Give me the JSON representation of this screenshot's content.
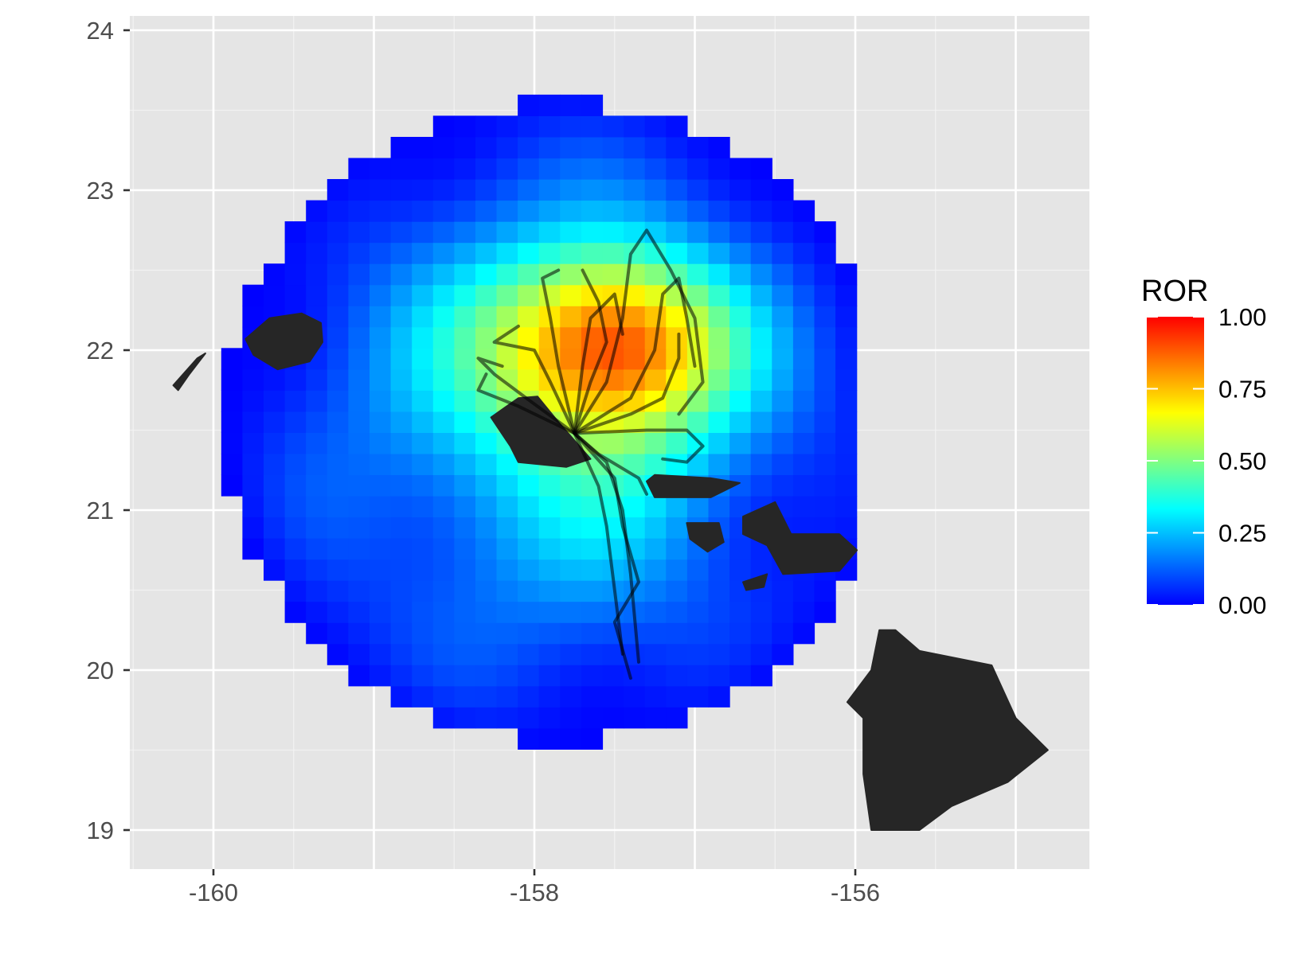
{
  "chart_data": {
    "type": "heatmap",
    "x_ticks": [
      "-160",
      "-158",
      "-156"
    ],
    "y_ticks": [
      "19",
      "20",
      "21",
      "22",
      "23",
      "24"
    ],
    "xlim": [
      -160.5,
      -154.6
    ],
    "ylim": [
      18.8,
      24.1
    ],
    "grid": true,
    "grid_centers": {
      "lon0": -158.3,
      "lat0": 21.55,
      "cell_deg": 0.132
    },
    "colorscale": {
      "name": "ROR",
      "range": [
        0,
        1
      ],
      "ticks": [
        "0.00",
        "0.25",
        "0.50",
        "0.75",
        "1.00"
      ],
      "tick_values": [
        0,
        0.25,
        0.5,
        0.75,
        1.0
      ],
      "colors": [
        "#0000ff",
        "#0080ff",
        "#00ffff",
        "#80ff80",
        "#ffff00",
        "#ff8000",
        "#ff0000"
      ]
    },
    "region_outline": {
      "center": [
        -157.85,
        21.55
      ],
      "radius_deg": 2.08,
      "description_points_note": "grid cells inside circular study area",
      "hotspot": {
        "center": [
          -157.5,
          22.05
        ],
        "peak": 0.72
      }
    },
    "islands": [
      {
        "name": "Niihau",
        "points": [
          [
            -160.25,
            21.78
          ],
          [
            -160.1,
            21.95
          ],
          [
            -160.05,
            21.98
          ],
          [
            -160.15,
            21.85
          ],
          [
            -160.22,
            21.75
          ]
        ]
      },
      {
        "name": "Kauai",
        "points": [
          [
            -159.8,
            22.07
          ],
          [
            -159.65,
            22.2
          ],
          [
            -159.45,
            22.23
          ],
          [
            -159.33,
            22.17
          ],
          [
            -159.32,
            22.05
          ],
          [
            -159.4,
            21.93
          ],
          [
            -159.6,
            21.88
          ],
          [
            -159.75,
            21.97
          ]
        ]
      },
      {
        "name": "Oahu",
        "points": [
          [
            -158.27,
            21.58
          ],
          [
            -158.1,
            21.7
          ],
          [
            -157.98,
            21.71
          ],
          [
            -157.85,
            21.55
          ],
          [
            -157.65,
            21.32
          ],
          [
            -157.8,
            21.27
          ],
          [
            -158.1,
            21.3
          ],
          [
            -158.15,
            21.4
          ]
        ]
      },
      {
        "name": "Molokai",
        "points": [
          [
            -157.3,
            21.18
          ],
          [
            -157.25,
            21.22
          ],
          [
            -156.9,
            21.2
          ],
          [
            -156.72,
            21.17
          ],
          [
            -156.9,
            21.08
          ],
          [
            -157.25,
            21.08
          ]
        ]
      },
      {
        "name": "Lanai",
        "points": [
          [
            -157.05,
            20.92
          ],
          [
            -156.85,
            20.92
          ],
          [
            -156.82,
            20.8
          ],
          [
            -156.92,
            20.74
          ],
          [
            -157.03,
            20.82
          ]
        ]
      },
      {
        "name": "Maui",
        "points": [
          [
            -156.7,
            20.96
          ],
          [
            -156.5,
            21.05
          ],
          [
            -156.4,
            20.85
          ],
          [
            -156.1,
            20.85
          ],
          [
            -155.99,
            20.75
          ],
          [
            -156.1,
            20.62
          ],
          [
            -156.45,
            20.6
          ],
          [
            -156.55,
            20.78
          ],
          [
            -156.7,
            20.85
          ]
        ]
      },
      {
        "name": "Kahoolawe",
        "points": [
          [
            -156.7,
            20.55
          ],
          [
            -156.55,
            20.6
          ],
          [
            -156.57,
            20.52
          ],
          [
            -156.68,
            20.5
          ]
        ]
      },
      {
        "name": "Hawaii",
        "points": [
          [
            -155.85,
            20.25
          ],
          [
            -155.75,
            20.25
          ],
          [
            -155.6,
            20.12
          ],
          [
            -155.15,
            20.03
          ],
          [
            -155.0,
            19.7
          ],
          [
            -154.8,
            19.5
          ],
          [
            -155.05,
            19.3
          ],
          [
            -155.4,
            19.15
          ],
          [
            -155.6,
            19.0
          ],
          [
            -155.9,
            19.0
          ],
          [
            -155.95,
            19.35
          ],
          [
            -155.95,
            19.7
          ],
          [
            -156.05,
            19.8
          ],
          [
            -155.9,
            20.0
          ]
        ]
      }
    ],
    "tracks_origin": [
      -157.75,
      21.48
    ],
    "tracks": [
      [
        [
          -157.75,
          21.48
        ],
        [
          -157.9,
          21.8
        ],
        [
          -158.0,
          22.0
        ],
        [
          -158.25,
          22.05
        ],
        [
          -158.1,
          22.15
        ]
      ],
      [
        [
          -157.75,
          21.48
        ],
        [
          -158.05,
          21.7
        ],
        [
          -158.25,
          21.85
        ],
        [
          -158.35,
          21.95
        ],
        [
          -158.2,
          21.9
        ]
      ],
      [
        [
          -157.75,
          21.48
        ],
        [
          -157.85,
          21.9
        ],
        [
          -157.9,
          22.2
        ],
        [
          -157.95,
          22.45
        ],
        [
          -157.85,
          22.5
        ]
      ],
      [
        [
          -157.75,
          21.48
        ],
        [
          -157.7,
          21.9
        ],
        [
          -157.65,
          22.2
        ],
        [
          -157.5,
          22.35
        ],
        [
          -157.45,
          22.1
        ]
      ],
      [
        [
          -157.75,
          21.48
        ],
        [
          -157.55,
          21.8
        ],
        [
          -157.45,
          22.2
        ],
        [
          -157.4,
          22.6
        ],
        [
          -157.3,
          22.75
        ],
        [
          -157.15,
          22.5
        ],
        [
          -157.0,
          22.2
        ],
        [
          -156.95,
          21.8
        ],
        [
          -157.1,
          21.6
        ]
      ],
      [
        [
          -157.75,
          21.48
        ],
        [
          -157.4,
          21.7
        ],
        [
          -157.25,
          22.0
        ],
        [
          -157.2,
          22.35
        ],
        [
          -157.1,
          22.45
        ],
        [
          -157.05,
          22.2
        ],
        [
          -157.0,
          21.9
        ]
      ],
      [
        [
          -157.75,
          21.48
        ],
        [
          -157.4,
          21.6
        ],
        [
          -157.2,
          21.7
        ],
        [
          -157.1,
          21.95
        ],
        [
          -157.1,
          22.1
        ]
      ],
      [
        [
          -157.75,
          21.48
        ],
        [
          -157.3,
          21.5
        ],
        [
          -157.05,
          21.5
        ],
        [
          -156.95,
          21.4
        ],
        [
          -157.05,
          21.3
        ],
        [
          -157.2,
          21.32
        ]
      ],
      [
        [
          -157.75,
          21.48
        ],
        [
          -157.6,
          21.35
        ],
        [
          -157.35,
          21.2
        ],
        [
          -157.3,
          21.1
        ]
      ],
      [
        [
          -157.75,
          21.48
        ],
        [
          -157.6,
          21.15
        ],
        [
          -157.55,
          20.9
        ],
        [
          -157.5,
          20.5
        ],
        [
          -157.45,
          20.1
        ]
      ],
      [
        [
          -157.75,
          21.48
        ],
        [
          -157.5,
          21.2
        ],
        [
          -157.45,
          20.9
        ],
        [
          -157.35,
          20.55
        ],
        [
          -157.5,
          20.3
        ],
        [
          -157.4,
          19.95
        ]
      ],
      [
        [
          -157.75,
          21.48
        ],
        [
          -157.55,
          21.3
        ],
        [
          -157.45,
          21.0
        ],
        [
          -157.4,
          20.6
        ],
        [
          -157.35,
          20.05
        ]
      ],
      [
        [
          -157.75,
          21.48
        ],
        [
          -158.1,
          21.65
        ],
        [
          -158.35,
          21.75
        ],
        [
          -158.3,
          21.85
        ]
      ],
      [
        [
          -157.75,
          21.48
        ],
        [
          -157.65,
          21.8
        ],
        [
          -157.55,
          22.05
        ],
        [
          -157.6,
          22.3
        ],
        [
          -157.7,
          22.5
        ]
      ]
    ]
  }
}
